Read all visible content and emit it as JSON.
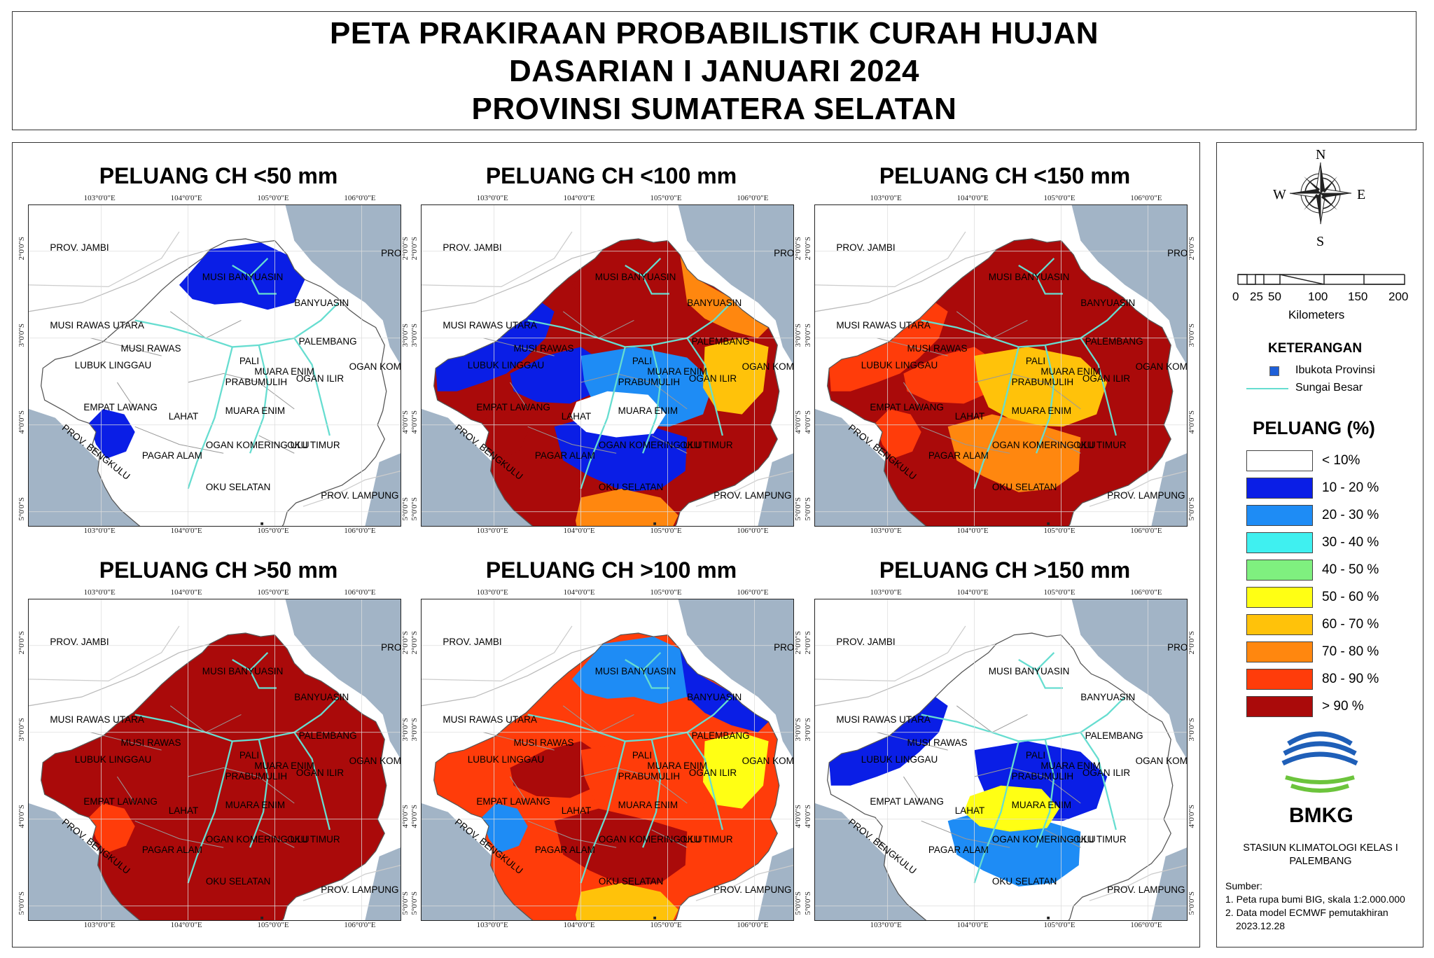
{
  "title": {
    "line1": "PETA PRAKIRAAN PROBABILISTIK CURAH HUJAN",
    "line2": "DASARIAN I JANUARI 2024",
    "line3": "PROVINSI SUMATERA SELATAN"
  },
  "colors": {
    "lt10": "#ffffff",
    "c10_20": "#0a1ee6",
    "c20_30": "#1e8cf5",
    "c30_40": "#3ff0f0",
    "c40_50": "#7ff07f",
    "c50_60": "#ffff14",
    "c60_70": "#ffc20a",
    "c70_80": "#ff870f",
    "c80_90": "#ff3c0a",
    "gt90": "#aa0a0a",
    "sea": "#a2b4c6",
    "river": "#66ddd0"
  },
  "panels": [
    {
      "title": "PELUANG CH <50 mm",
      "scheme": "low50"
    },
    {
      "title": "PELUANG CH <100 mm",
      "scheme": "low100"
    },
    {
      "title": "PELUANG CH <150 mm",
      "scheme": "low150"
    },
    {
      "title": "PELUANG CH >50 mm",
      "scheme": "high50"
    },
    {
      "title": "PELUANG CH >100 mm",
      "scheme": "high100"
    },
    {
      "title": "PELUANG CH >150 mm",
      "scheme": "high150"
    }
  ],
  "ticks": {
    "lon": [
      "103°0'0\"E",
      "104°0'0\"E",
      "105°0'0\"E",
      "106°0'0\"E"
    ],
    "lat": [
      "2°0'0\"S",
      "3°0'0\"S",
      "4°0'0\"S",
      "5°0'0\"S"
    ]
  },
  "places": {
    "jambi": "PROV. JAMBI",
    "babel": "PROV. BABEL",
    "musi_banyuasin": "MUSI BANYUASIN",
    "banyuasin": "BANYUASIN",
    "musi_rawas_utara": "MUSI RAWAS UTARA",
    "musi_rawas": "MUSI RAWAS",
    "palembang": "PALEMBANG",
    "lubuk_linggau": "LUBUK LINGGAU",
    "pali": "PALI",
    "muara_enim": "MUARA ENIM",
    "ogan_komering_ilir": "OGAN KOMERING ILIR",
    "prabumulih": "PRABUMULIH",
    "ogan_ilir": "OGAN ILIR",
    "empat_lawang": "EMPAT LAWANG",
    "lahat": "LAHAT",
    "bengkulu": "PROV. BENGKULU",
    "ogan_komering_ulu": "OGAN KOMERING ULU",
    "oku_timur": "OKU TIMUR",
    "pagar_alam": "PAGAR ALAM",
    "oku_selatan": "OKU SELATAN",
    "lampung": "PROV. LAMPUNG"
  },
  "legend": {
    "compass": {
      "n": "N",
      "s": "S",
      "e": "E",
      "w": "W"
    },
    "scale_numbers": [
      "0",
      "25",
      "50",
      "100",
      "150",
      "200"
    ],
    "scale_unit": "Kilometers",
    "keterangan_title": "KETERANGAN",
    "capital_label": "Ibukota Provinsi",
    "river_label": "Sungai Besar",
    "peluang_title": "PELUANG (%)",
    "classes": [
      {
        "label": "< 10%",
        "color": "#ffffff"
      },
      {
        "label": "10 - 20 %",
        "color": "#0a1ee6"
      },
      {
        "label": "20 - 30 %",
        "color": "#1e8cf5"
      },
      {
        "label": "30 - 40 %",
        "color": "#3ff0f0"
      },
      {
        "label": "40 - 50 %",
        "color": "#7ff07f"
      },
      {
        "label": "50 - 60 %",
        "color": "#ffff14"
      },
      {
        "label": "60 - 70 %",
        "color": "#ffc20a"
      },
      {
        "label": "70 - 80 %",
        "color": "#ff870f"
      },
      {
        "label": "80 - 90 %",
        "color": "#ff3c0a"
      },
      {
        "label": "> 90 %",
        "color": "#aa0a0a"
      }
    ],
    "agency": "BMKG",
    "station_line1": "STASIUN KLIMATOLOGI KELAS I",
    "station_line2": "PALEMBANG",
    "source_title": "Sumber:",
    "source1": "1. Peta rupa bumi BIG, skala 1:2.000.000",
    "source2": "2. Data model ECMWF pemutakhiran",
    "source3": "2023.12.28"
  }
}
